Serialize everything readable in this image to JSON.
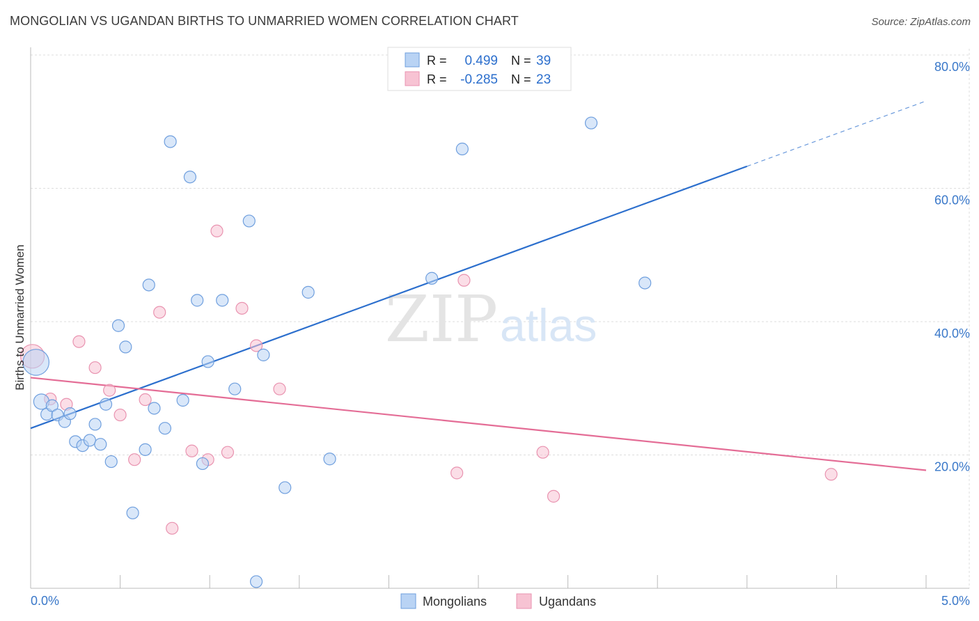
{
  "title": "MONGOLIAN VS UGANDAN BIRTHS TO UNMARRIED WOMEN CORRELATION CHART",
  "source": "Source: ZipAtlas.com",
  "watermark": {
    "zip": "ZIP",
    "atlas": "atlas"
  },
  "colors": {
    "blue": "#2c6fcd",
    "blue_fill": "#b9d3f4",
    "pink": "#e46d96",
    "pink_fill": "#f7c3d3",
    "axis_label": "#3a78c9",
    "grid": "#dddddd"
  },
  "legend_top": [
    {
      "r_label": "R =",
      "r_value": "0.499",
      "n_label": "N =",
      "n_value": "39",
      "series": "blue"
    },
    {
      "r_label": "R =",
      "r_value": "-0.285",
      "n_label": "N =",
      "n_value": "23",
      "series": "pink"
    }
  ],
  "legend_bottom": [
    {
      "label": "Mongolians",
      "series": "blue"
    },
    {
      "label": "Ugandans",
      "series": "pink"
    }
  ],
  "chart_data": {
    "type": "scatter",
    "title": "MONGOLIAN VS UGANDAN BIRTHS TO UNMARRIED WOMEN CORRELATION CHART",
    "xlabel": "",
    "ylabel": "Births to Unmarried Women",
    "xlim": [
      0,
      5
    ],
    "ylim": [
      0,
      80
    ],
    "x_tick_labels": [
      {
        "value": 0,
        "label": "0.0%"
      },
      {
        "value": 5,
        "label": "5.0%"
      }
    ],
    "y_tick_labels": [
      {
        "value": 20,
        "label": "20.0%"
      },
      {
        "value": 40,
        "label": "40.0%"
      },
      {
        "value": 60,
        "label": "60.0%"
      },
      {
        "value": 80,
        "label": "80.0%"
      }
    ],
    "grid": true,
    "series": [
      {
        "name": "Mongolians",
        "color": "blue",
        "r": 0.499,
        "n": 39,
        "points": [
          [
            0.03,
            33.9,
            2.2
          ],
          [
            0.06,
            28.0,
            1.3
          ],
          [
            0.09,
            26.1,
            1.0
          ],
          [
            0.12,
            27.4,
            1.0
          ],
          [
            0.15,
            26.0,
            1.0
          ],
          [
            0.19,
            25.0,
            1.0
          ],
          [
            0.22,
            26.2,
            1.0
          ],
          [
            0.25,
            22.0,
            1.0
          ],
          [
            0.29,
            21.4,
            1.0
          ],
          [
            0.33,
            22.2,
            1.0
          ],
          [
            0.36,
            24.6,
            1.0
          ],
          [
            0.39,
            21.6,
            1.0
          ],
          [
            0.42,
            27.6,
            1.0
          ],
          [
            0.45,
            19.0,
            1.0
          ],
          [
            0.49,
            39.4,
            1.0
          ],
          [
            0.53,
            36.2,
            1.0
          ],
          [
            0.57,
            11.3,
            1.0
          ],
          [
            0.64,
            20.8,
            1.0
          ],
          [
            0.66,
            45.5,
            1.0
          ],
          [
            0.69,
            27.0,
            1.0
          ],
          [
            0.75,
            24.0,
            1.0
          ],
          [
            0.78,
            67.0,
            1.0
          ],
          [
            0.85,
            28.2,
            1.0
          ],
          [
            0.89,
            61.7,
            1.0
          ],
          [
            0.93,
            43.2,
            1.0
          ],
          [
            0.96,
            18.7,
            1.0
          ],
          [
            0.99,
            34.0,
            1.0
          ],
          [
            1.07,
            43.2,
            1.0
          ],
          [
            1.14,
            29.9,
            1.0
          ],
          [
            1.22,
            55.1,
            1.0
          ],
          [
            1.26,
            1.0,
            1.0
          ],
          [
            1.3,
            35.0,
            1.0
          ],
          [
            1.42,
            15.1,
            1.0
          ],
          [
            1.55,
            44.4,
            1.0
          ],
          [
            1.67,
            19.4,
            1.0
          ],
          [
            2.24,
            46.5,
            1.0
          ],
          [
            2.41,
            65.9,
            1.0
          ],
          [
            3.13,
            69.8,
            1.0
          ],
          [
            3.43,
            45.8,
            1.0
          ]
        ],
        "trend": {
          "x0": 0,
          "y0": 24.0,
          "x1": 4.0,
          "y1": 63.3,
          "dash_x1": 5.0,
          "dash_y1": 73.1
        }
      },
      {
        "name": "Ugandans",
        "color": "pink",
        "r": -0.285,
        "n": 23,
        "points": [
          [
            0.01,
            34.8,
            2.0
          ],
          [
            0.11,
            28.4,
            1.0
          ],
          [
            0.2,
            27.6,
            1.0
          ],
          [
            0.27,
            37.0,
            1.0
          ],
          [
            0.36,
            33.1,
            1.0
          ],
          [
            0.44,
            29.7,
            1.0
          ],
          [
            0.5,
            26.0,
            1.0
          ],
          [
            0.58,
            19.3,
            1.0
          ],
          [
            0.64,
            28.3,
            1.0
          ],
          [
            0.72,
            41.4,
            1.0
          ],
          [
            0.79,
            9.0,
            1.0
          ],
          [
            0.9,
            20.6,
            1.0
          ],
          [
            0.99,
            19.3,
            1.0
          ],
          [
            1.04,
            53.6,
            1.0
          ],
          [
            1.1,
            20.4,
            1.0
          ],
          [
            1.18,
            42.0,
            1.0
          ],
          [
            1.26,
            36.4,
            1.0
          ],
          [
            1.39,
            29.9,
            1.0
          ],
          [
            2.38,
            17.3,
            1.0
          ],
          [
            2.42,
            46.2,
            1.0
          ],
          [
            2.86,
            20.4,
            1.0
          ],
          [
            2.92,
            13.8,
            1.0
          ],
          [
            4.47,
            17.1,
            1.0
          ]
        ],
        "trend": {
          "x0": 0,
          "y0": 31.6,
          "x1": 5.0,
          "y1": 17.7
        }
      }
    ]
  }
}
